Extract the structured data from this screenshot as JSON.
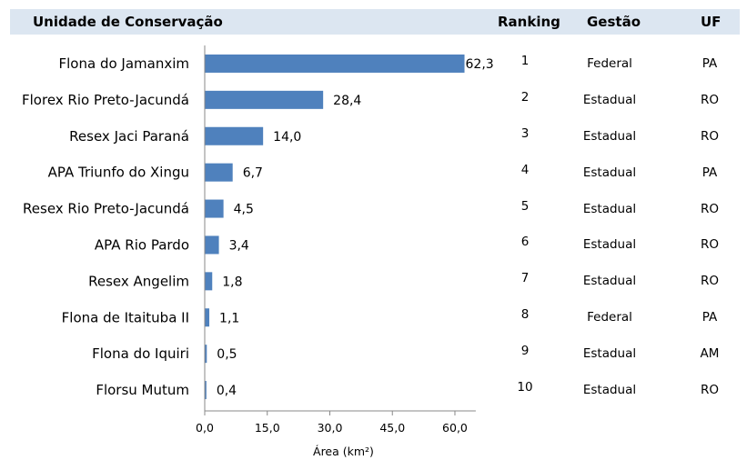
{
  "header": {
    "col_unit": "Unidade de Conservação",
    "col_ranking": "Ranking",
    "col_gestao": "Gestão",
    "col_uf": "UF"
  },
  "chart_data": {
    "type": "bar",
    "orientation": "horizontal",
    "categories": [
      "Flona do Jamanxim",
      "Florex Rio Preto-Jacundá",
      "Resex Jaci Paraná",
      "APA Triunfo do Xingu",
      "Resex Rio Preto-Jacundá",
      "APA Rio Pardo",
      "Resex Angelim",
      "Flona de Itaituba II",
      "Flona do Iquiri",
      "Florsu Mutum"
    ],
    "values": [
      62.3,
      28.4,
      14.0,
      6.7,
      4.5,
      3.4,
      1.8,
      1.1,
      0.5,
      0.4
    ],
    "value_labels": [
      "62,3",
      "28,4",
      "14,0",
      "6,7",
      "4,5",
      "3,4",
      "1,8",
      "1,1",
      "0,5",
      "0,4"
    ],
    "xlim": [
      0,
      65
    ],
    "xticks": [
      0,
      15,
      30,
      45,
      60
    ],
    "xtick_labels": [
      "0,0",
      "15,0",
      "30,0",
      "45,0",
      "60,0"
    ],
    "xlabel": "Área (km²)",
    "bar_color": "#4f81bd",
    "grid": false
  },
  "table": {
    "rows": [
      {
        "ranking": "1",
        "gestao": "Federal",
        "uf": "PA"
      },
      {
        "ranking": "2",
        "gestao": "Estadual",
        "uf": "RO"
      },
      {
        "ranking": "3",
        "gestao": "Estadual",
        "uf": "RO"
      },
      {
        "ranking": "4",
        "gestao": "Estadual",
        "uf": "PA"
      },
      {
        "ranking": "5",
        "gestao": "Estadual",
        "uf": "RO"
      },
      {
        "ranking": "6",
        "gestao": "Estadual",
        "uf": "RO"
      },
      {
        "ranking": "7",
        "gestao": "Estadual",
        "uf": "RO"
      },
      {
        "ranking": "8",
        "gestao": "Federal",
        "uf": "PA"
      },
      {
        "ranking": "9",
        "gestao": "Estadual",
        "uf": "AM"
      },
      {
        "ranking": "10",
        "gestao": "Estadual",
        "uf": "RO"
      }
    ]
  }
}
